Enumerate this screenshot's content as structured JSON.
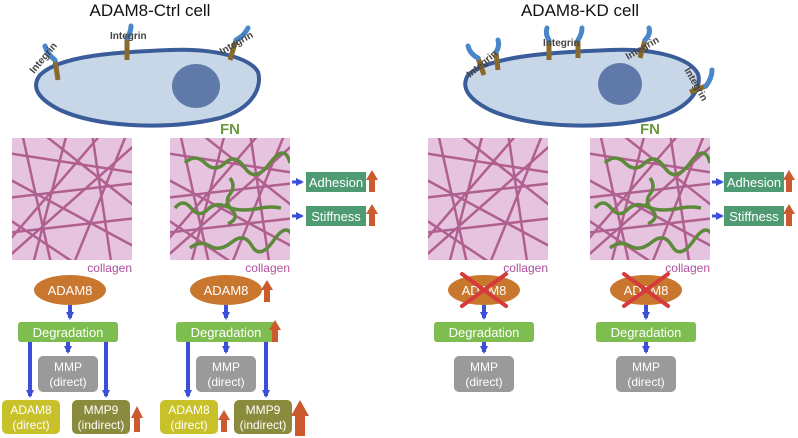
{
  "titles": {
    "ctrl": "ADAM8-Ctrl cell",
    "kd": "ADAM8-KD cell"
  },
  "integrin_label": "Integrin",
  "fn_label": "FN",
  "collagen_label": "collagen",
  "adhesion_label": "Adhesion",
  "stiffness_label": "Stiffness",
  "adam8_label": "ADAM8",
  "degradation_label": "Degradation",
  "mmp_direct": {
    "line1": "MMP",
    "line2": "(direct)"
  },
  "adam8_direct": {
    "line1": "ADAM8",
    "line2": "(direct)"
  },
  "mmp9_indirect": {
    "line1": "MMP9",
    "line2": "(indirect)"
  },
  "colors": {
    "cell_fill": "#c8d7e8",
    "cell_stroke": "#3a5d9a",
    "nucleus": "#5f79a8",
    "collagen_bg": "#e6c3df",
    "collagen_fiber": "#b0608e",
    "fn_fiber": "#5c8a3a",
    "fn_text": "#6a9a3d",
    "collagen_text": "#b04fa0",
    "adam8_fill": "#c9762f",
    "degradation_fill": "#7ebd4f",
    "mmp_fill": "#9a9a9a",
    "adam8_direct_fill": "#c9c12a",
    "mmp9_fill": "#8b8b3d",
    "tag_fill": "#4e9a73",
    "arrow_blue": "#3b4fd8",
    "up_arrow": "#cc5a2f",
    "cross": "#d63a3a",
    "integrin_head": "#4a86c8",
    "integrin_stalk": "#8a6a2a"
  }
}
